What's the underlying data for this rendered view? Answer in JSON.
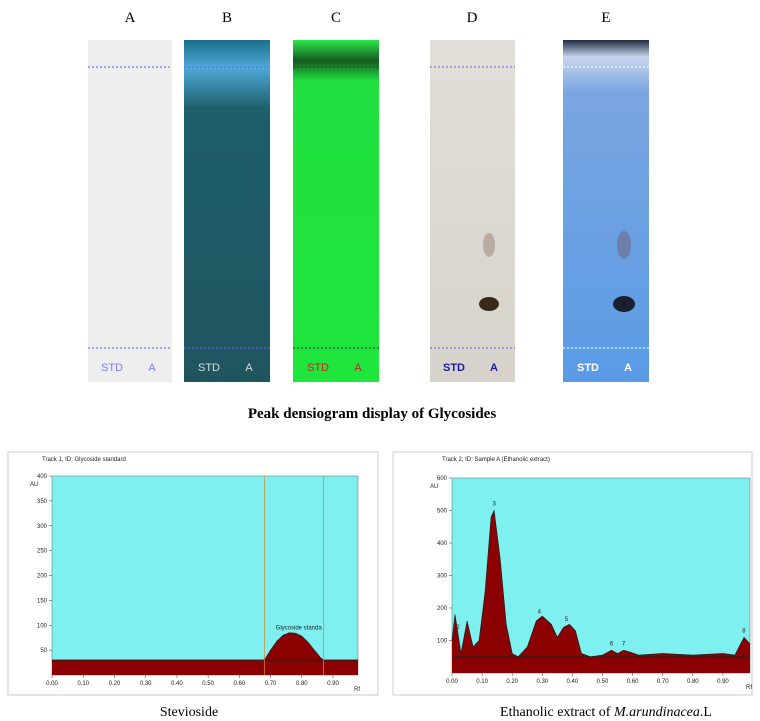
{
  "plate_labels": [
    "A",
    "B",
    "C",
    "D",
    "E"
  ],
  "lane_labels": [
    [
      "STD",
      "A"
    ],
    [
      "STD",
      "A"
    ],
    [
      "STD",
      "A"
    ],
    [
      "STD",
      "A"
    ],
    [
      "STD",
      "A"
    ]
  ],
  "heading": "Peak densiogram display of Glycosides",
  "captions": [
    {
      "text": "Stevioside"
    },
    {
      "text": "Ethanolic extract of ",
      "italic": "M.arundinacea",
      "suffix": ".L"
    }
  ],
  "chart_data": [
    {
      "type": "area",
      "title": "Track 1, ID: Glycoside standard",
      "ylabel": "AU",
      "xlabel": "Rf",
      "color": "#8b0000",
      "background": "#7ff0f0",
      "x": [
        0,
        0.68,
        0.7,
        0.72,
        0.74,
        0.76,
        0.78,
        0.8,
        0.82,
        0.84,
        0.86,
        0.87,
        0.98
      ],
      "values": [
        30,
        30,
        50,
        68,
        80,
        85,
        84,
        78,
        66,
        50,
        35,
        30,
        30
      ],
      "baseline": 30,
      "markers": [
        0.68,
        0.87
      ],
      "peak_labels": [
        {
          "text": "Glycoside standa",
          "x": 0.79
        }
      ],
      "xlim": [
        0,
        0.98
      ],
      "ylim": [
        0,
        400
      ],
      "xticks": [
        {
          "value": 0,
          "label": "0.00"
        },
        {
          "value": 0.1,
          "label": "0.10"
        },
        {
          "value": 0.2,
          "label": "0.20"
        },
        {
          "value": 0.3,
          "label": "0.30"
        },
        {
          "value": 0.4,
          "label": "0.40"
        },
        {
          "value": 0.5,
          "label": "0.50"
        },
        {
          "value": 0.6,
          "label": "0.60"
        },
        {
          "value": 0.7,
          "label": "0.70"
        },
        {
          "value": 0.8,
          "label": "0.80"
        },
        {
          "value": 0.9,
          "label": "0.90"
        }
      ],
      "yticks": [
        50,
        100,
        150,
        200,
        250,
        300,
        350,
        400
      ]
    },
    {
      "type": "area",
      "title": "Track 2, ID: Sample A (Ethanolic extract)",
      "ylabel": "AU",
      "xlabel": "Rf",
      "color": "#8b0000",
      "background": "#7ff0f0",
      "x": [
        0,
        0.01,
        0.02,
        0.03,
        0.05,
        0.07,
        0.09,
        0.11,
        0.13,
        0.14,
        0.16,
        0.18,
        0.2,
        0.22,
        0.25,
        0.28,
        0.3,
        0.33,
        0.35,
        0.37,
        0.39,
        0.41,
        0.43,
        0.46,
        0.5,
        0.53,
        0.55,
        0.57,
        0.59,
        0.62,
        0.7,
        0.8,
        0.9,
        0.94,
        0.97,
        0.99
      ],
      "values": [
        100,
        180,
        120,
        60,
        160,
        80,
        100,
        250,
        480,
        500,
        350,
        150,
        60,
        50,
        80,
        160,
        175,
        150,
        110,
        140,
        150,
        130,
        60,
        50,
        55,
        70,
        60,
        70,
        65,
        55,
        60,
        55,
        60,
        55,
        110,
        90
      ],
      "baseline": 50,
      "markers": [],
      "peak_labels": [
        {
          "text": "2",
          "x": 0.02
        },
        {
          "text": "3",
          "x": 0.14
        },
        {
          "text": "4",
          "x": 0.29
        },
        {
          "text": "5",
          "x": 0.38
        },
        {
          "text": "6",
          "x": 0.53
        },
        {
          "text": "7",
          "x": 0.57
        },
        {
          "text": "8",
          "x": 0.97
        }
      ],
      "xlim": [
        0,
        0.99
      ],
      "ylim": [
        0,
        600
      ],
      "xticks": [
        {
          "value": 0,
          "label": "0.00"
        },
        {
          "value": 0.1,
          "label": "0.10"
        },
        {
          "value": 0.2,
          "label": "0.20"
        },
        {
          "value": 0.3,
          "label": "0.30"
        },
        {
          "value": 0.4,
          "label": "0.40"
        },
        {
          "value": 0.5,
          "label": "0.50"
        },
        {
          "value": 0.6,
          "label": "0.60"
        },
        {
          "value": 0.7,
          "label": "0.70"
        },
        {
          "value": 0.8,
          "label": "0.80"
        },
        {
          "value": 0.9,
          "label": "0.90"
        }
      ],
      "yticks": [
        100,
        200,
        300,
        400,
        500,
        600
      ]
    }
  ]
}
